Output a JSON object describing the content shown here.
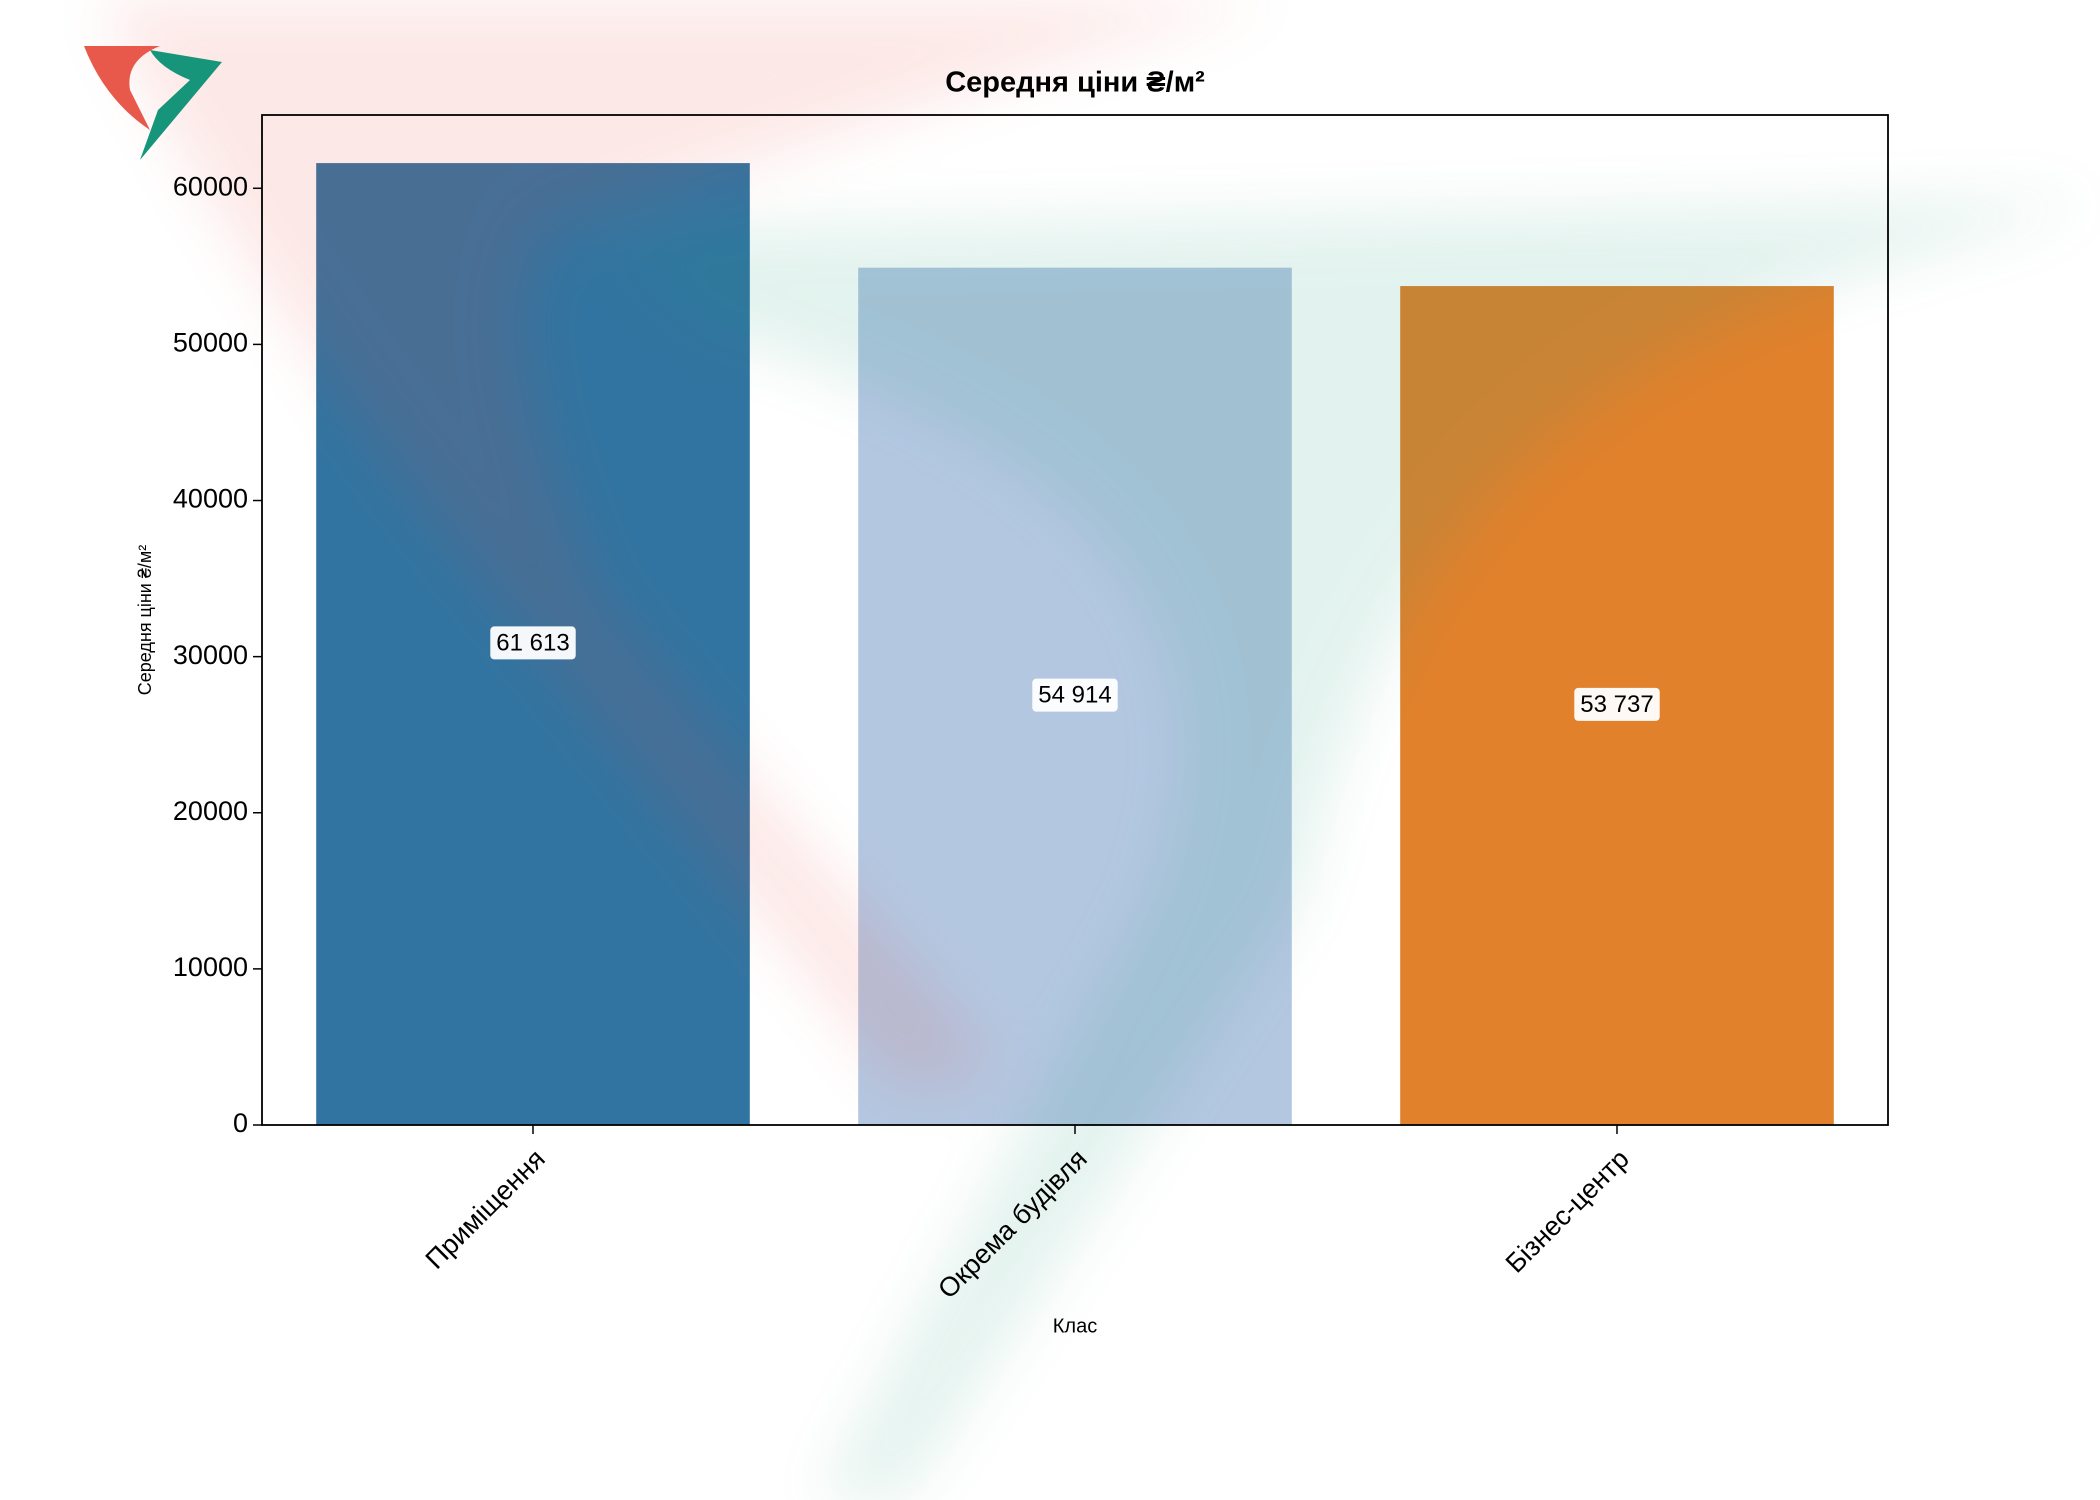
{
  "chart_data": {
    "type": "bar",
    "title": "Середня ціни ₴/м²",
    "xlabel": "Клас",
    "ylabel": "Середня ціни ₴/м²",
    "categories": [
      "Приміщення",
      "Окрема будівля",
      "Бізнес-центр"
    ],
    "values": [
      61613,
      54914,
      53737
    ],
    "value_labels": [
      "61 613",
      "54 914",
      "53 737"
    ],
    "colors": [
      "#3274a1",
      "#b4c7e1",
      "#e1812c"
    ],
    "ylim": [
      0,
      64694
    ],
    "yticks": [
      0,
      10000,
      20000,
      30000,
      40000,
      50000,
      60000
    ]
  }
}
